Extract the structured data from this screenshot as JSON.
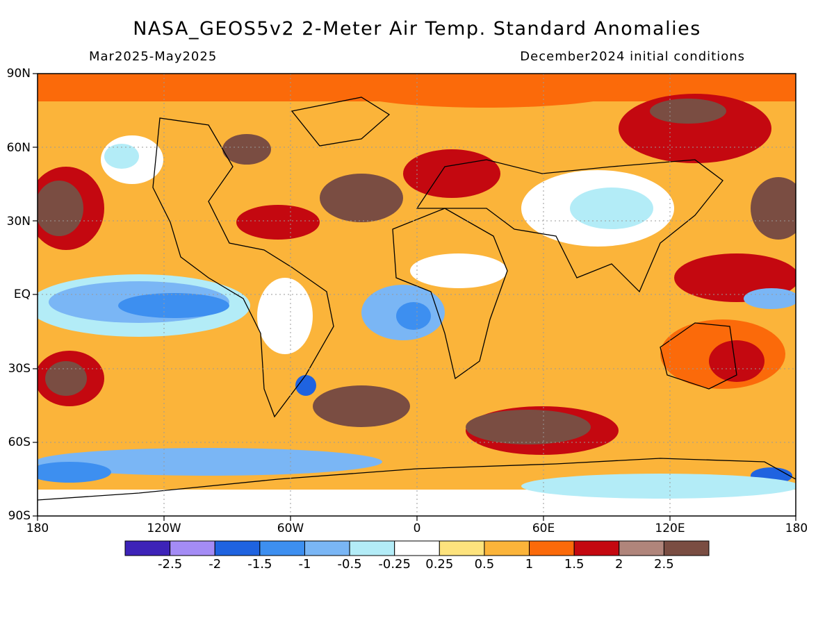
{
  "title": "NASA_GEOS5v2 2-Meter Air Temp. Standard Anomalies",
  "period": "Mar2025-May2025",
  "initial_conditions": "December2024 initial conditions",
  "lat_labels": [
    "90N",
    "60N",
    "30N",
    "EQ",
    "30S",
    "60S",
    "90S"
  ],
  "lon_labels": [
    "180",
    "120W",
    "60W",
    "0",
    "60E",
    "120E",
    "180"
  ],
  "colorbar": {
    "colors": [
      "#3d23b8",
      "#a48cf5",
      "#1f63e0",
      "#3d8ff0",
      "#7ab6f5",
      "#b3ecf7",
      "#ffffff",
      "#fde37d",
      "#fbb43a",
      "#fb6a0a",
      "#c40810",
      "#b0857b",
      "#7a4d42"
    ],
    "labels": [
      "-2.5",
      "-2",
      "-1.5",
      "-1",
      "-0.5",
      "-0.25",
      "0.25",
      "0.5",
      "1",
      "1.5",
      "2",
      "2.5"
    ]
  },
  "map_background": "#fbb43a",
  "coastline_color": "#000000",
  "grid_color": "#9a9a9a"
}
